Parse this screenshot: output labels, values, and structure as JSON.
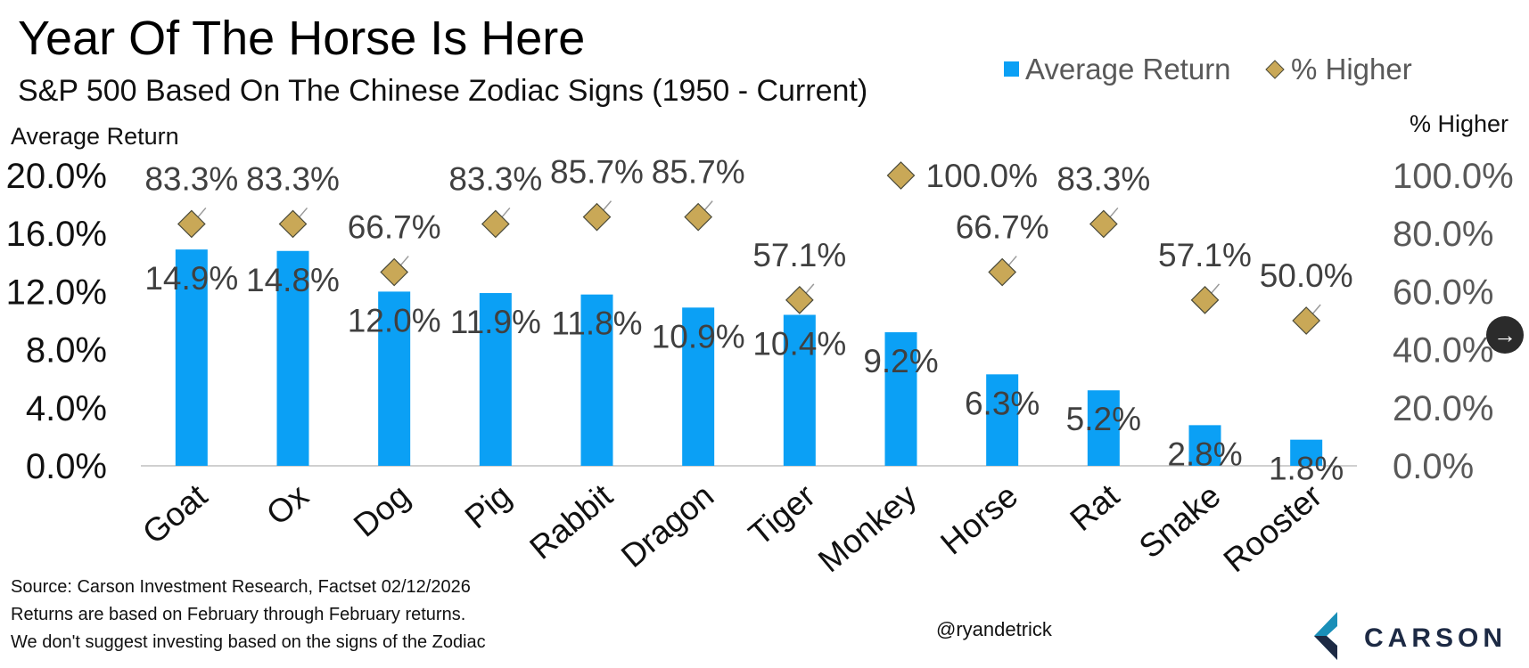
{
  "header": {
    "title": "Year Of The Horse Is Here",
    "subtitle": "S&P 500 Based On The Chinese Zodiac Signs (1950 - Current)"
  },
  "footer": {
    "source": "Source: Carson Investment Research, Factset 02/12/2026",
    "note1": "Returns are based on February through February returns.",
    "note2": "We don't suggest investing based on the signs of the Zodiac",
    "handle": "@ryandetrick"
  },
  "logo": {
    "text": "CARSON"
  },
  "nav": {
    "icon": "arrow-right-icon",
    "glyph": "→"
  },
  "colors": {
    "bar": "#0BA0F5",
    "diamond": "#C9A857",
    "diamond_edge": "#4A4A3A",
    "label": "#404040",
    "axis": "#d0d0d0",
    "logo_dark": "#1d2a44",
    "logo_teal": "#1a8fb8"
  },
  "chart_data": {
    "type": "bar",
    "categories": [
      "Goat",
      "Ox",
      "Dog",
      "Pig",
      "Rabbit",
      "Dragon",
      "Tiger",
      "Monkey",
      "Horse",
      "Rat",
      "Snake",
      "Rooster"
    ],
    "series": [
      {
        "name": "Average Return",
        "type": "bar",
        "axis": "left",
        "values": [
          14.9,
          14.8,
          12.0,
          11.9,
          11.8,
          10.9,
          10.4,
          9.2,
          6.3,
          5.2,
          2.8,
          1.8
        ],
        "labels": [
          "14.9%",
          "14.8%",
          "12.0%",
          "11.9%",
          "11.8%",
          "10.9%",
          "10.4%",
          "9.2%",
          "6.3%",
          "5.2%",
          "2.8%",
          "1.8%"
        ]
      },
      {
        "name": "% Higher",
        "type": "scatter",
        "marker": "diamond",
        "axis": "right",
        "values": [
          83.3,
          83.3,
          66.7,
          83.3,
          85.7,
          85.7,
          57.1,
          100.0,
          66.7,
          83.3,
          57.1,
          50.0
        ],
        "labels": [
          "83.3%",
          "83.3%",
          "66.7%",
          "83.3%",
          "85.7%",
          "85.7%",
          "57.1%",
          "100.0%",
          "66.7%",
          "83.3%",
          "57.1%",
          "50.0%"
        ]
      }
    ],
    "ylabel_left": "Average Return",
    "ylabel_right": "% Higher",
    "ylim_left": [
      0,
      20
    ],
    "ylim_right": [
      0,
      100
    ],
    "yticks_left": [
      "0.0%",
      "4.0%",
      "8.0%",
      "12.0%",
      "16.0%",
      "20.0%"
    ],
    "yticks_right": [
      "0.0%",
      "20.0%",
      "40.0%",
      "60.0%",
      "80.0%",
      "100.0%"
    ],
    "legend": {
      "position": "top-right",
      "entries": [
        "Average Return",
        "% Higher"
      ]
    },
    "grid": false
  }
}
